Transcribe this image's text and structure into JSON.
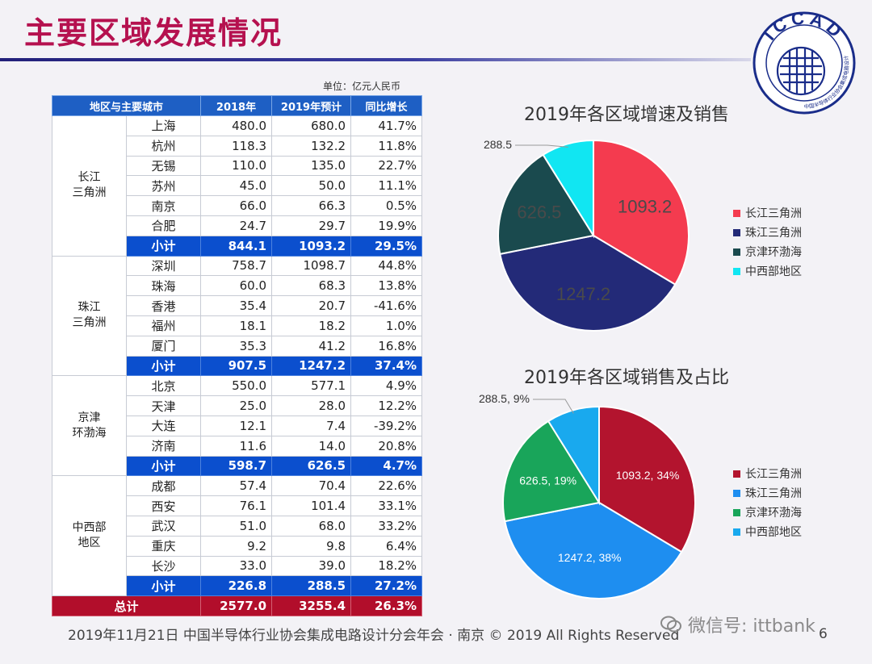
{
  "title": "主要区域发展情况",
  "unit_label": "单位：亿元人民币",
  "logo_text": "ICCAD",
  "logo_subtext": "中国半导体行业协会集成电路设计分会",
  "table": {
    "headers": [
      "地区与主要城市",
      "2018年",
      "2019年预计",
      "同比增长"
    ],
    "regions": [
      {
        "name_lines": [
          "长江",
          "三角洲"
        ],
        "rows": [
          {
            "city": "上海",
            "y2018": "480.0",
            "y2019": "680.0",
            "growth": "41.7%"
          },
          {
            "city": "杭州",
            "y2018": "118.3",
            "y2019": "132.2",
            "growth": "11.8%"
          },
          {
            "city": "无锡",
            "y2018": "110.0",
            "y2019": "135.0",
            "growth": "22.7%"
          },
          {
            "city": "苏州",
            "y2018": "45.0",
            "y2019": "50.0",
            "growth": "11.1%"
          },
          {
            "city": "南京",
            "y2018": "66.0",
            "y2019": "66.3",
            "growth": "0.5%"
          },
          {
            "city": "合肥",
            "y2018": "24.7",
            "y2019": "29.7",
            "growth": "19.9%"
          }
        ],
        "subtotal": {
          "label": "小计",
          "y2018": "844.1",
          "y2019": "1093.2",
          "growth": "29.5%"
        }
      },
      {
        "name_lines": [
          "珠江",
          "三角洲"
        ],
        "rows": [
          {
            "city": "深圳",
            "y2018": "758.7",
            "y2019": "1098.7",
            "growth": "44.8%"
          },
          {
            "city": "珠海",
            "y2018": "60.0",
            "y2019": "68.3",
            "growth": "13.8%"
          },
          {
            "city": "香港",
            "y2018": "35.4",
            "y2019": "20.7",
            "growth": "-41.6%"
          },
          {
            "city": "福州",
            "y2018": "18.1",
            "y2019": "18.2",
            "growth": "1.0%"
          },
          {
            "city": "厦门",
            "y2018": "35.3",
            "y2019": "41.2",
            "growth": "16.8%"
          }
        ],
        "subtotal": {
          "label": "小计",
          "y2018": "907.5",
          "y2019": "1247.2",
          "growth": "37.4%"
        }
      },
      {
        "name_lines": [
          "京津",
          "环渤海"
        ],
        "rows": [
          {
            "city": "北京",
            "y2018": "550.0",
            "y2019": "577.1",
            "growth": "4.9%"
          },
          {
            "city": "天津",
            "y2018": "25.0",
            "y2019": "28.0",
            "growth": "12.2%"
          },
          {
            "city": "大连",
            "y2018": "12.1",
            "y2019": "7.4",
            "growth": "-39.2%"
          },
          {
            "city": "济南",
            "y2018": "11.6",
            "y2019": "14.0",
            "growth": "20.8%"
          }
        ],
        "subtotal": {
          "label": "小计",
          "y2018": "598.7",
          "y2019": "626.5",
          "growth": "4.7%"
        }
      },
      {
        "name_lines": [
          "中西部",
          "地区"
        ],
        "rows": [
          {
            "city": "成都",
            "y2018": "57.4",
            "y2019": "70.4",
            "growth": "22.6%"
          },
          {
            "city": "西安",
            "y2018": "76.1",
            "y2019": "101.4",
            "growth": "33.1%"
          },
          {
            "city": "武汉",
            "y2018": "51.0",
            "y2019": "68.0",
            "growth": "33.2%"
          },
          {
            "city": "重庆",
            "y2018": "9.2",
            "y2019": "9.8",
            "growth": "6.4%"
          },
          {
            "city": "长沙",
            "y2018": "33.0",
            "y2019": "39.0",
            "growth": "18.2%"
          }
        ],
        "subtotal": {
          "label": "小计",
          "y2018": "226.8",
          "y2019": "288.5",
          "growth": "27.2%"
        }
      }
    ],
    "total": {
      "label": "总计",
      "y2018": "2577.0",
      "y2019": "3255.4",
      "growth": "26.3%"
    }
  },
  "chart_data": [
    {
      "type": "pie",
      "title": "2019年各区域增速及销售",
      "categories": [
        "长江三角洲",
        "珠江三角洲",
        "京津环渤海",
        "中西部地区"
      ],
      "values": [
        1093.2,
        1247.2,
        626.5,
        288.5
      ],
      "labels": [
        "1093.2",
        "1247.2",
        "626.5",
        "288.5"
      ],
      "colors": [
        "#f43b4f",
        "#232a78",
        "#1a4a4e",
        "#11e6f2"
      ],
      "legend_position": "right"
    },
    {
      "type": "pie",
      "title": "2019年各区域销售及占比",
      "categories": [
        "长江三角洲",
        "珠江三角洲",
        "京津环渤海",
        "中西部地区"
      ],
      "values": [
        1093.2,
        1247.2,
        626.5,
        288.5
      ],
      "labels": [
        "1093.2, 34%",
        "1247.2, 38%",
        "626.5, 19%",
        "288.5, 9%"
      ],
      "colors": [
        "#b3142e",
        "#1e8ef0",
        "#19a55a",
        "#19a9ee"
      ],
      "legend_position": "right"
    }
  ],
  "footer": "2019年11月21日 中国半导体行业协会集成电路设计分会年会 · 南京 © 2019 All Rights Reserved",
  "page_number": "6",
  "watermark": "微信号: ittbank"
}
